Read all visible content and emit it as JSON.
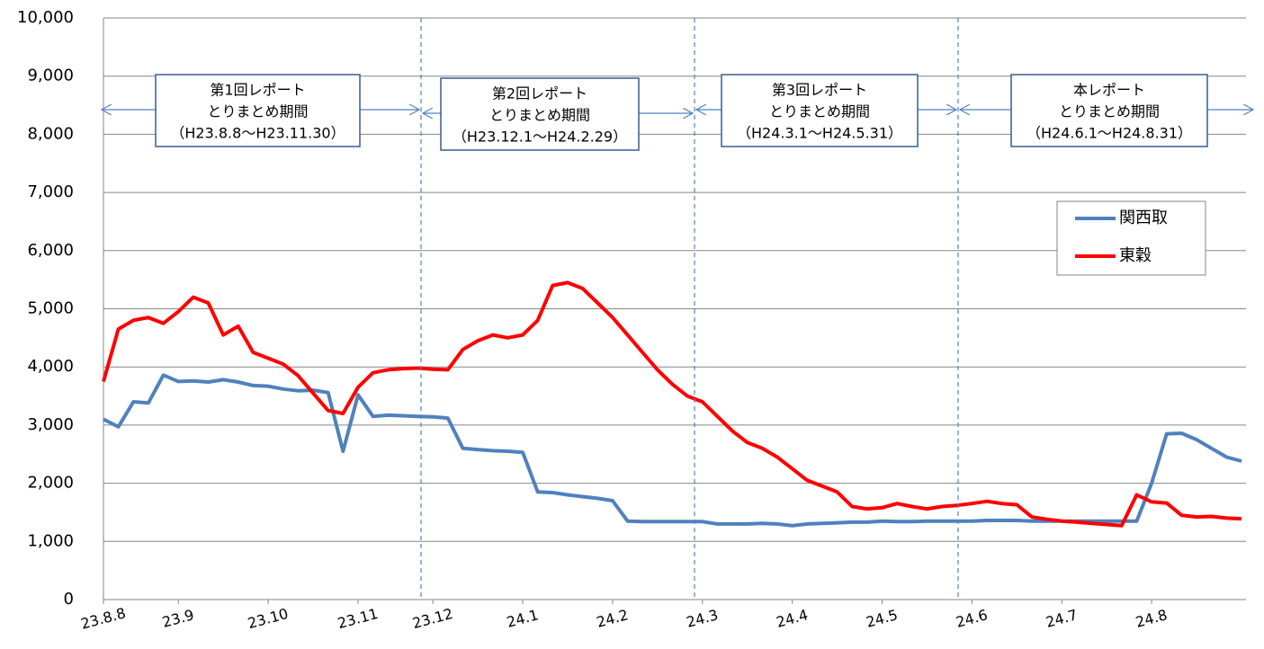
{
  "chart_data": {
    "type": "line",
    "categories": [
      "23.8.8",
      null,
      null,
      null,
      null,
      "23.9",
      null,
      null,
      null,
      null,
      null,
      "23.10",
      null,
      null,
      null,
      null,
      null,
      "23.11",
      null,
      null,
      null,
      null,
      "23.12",
      null,
      null,
      null,
      null,
      null,
      "24.1",
      null,
      null,
      null,
      null,
      null,
      "24.2",
      null,
      null,
      null,
      null,
      null,
      "24.3",
      null,
      null,
      null,
      null,
      null,
      "24.4",
      null,
      null,
      null,
      null,
      null,
      "24.5",
      null,
      null,
      null,
      null,
      null,
      "24.6",
      null,
      null,
      null,
      null,
      null,
      "24.7",
      null,
      null,
      null,
      null,
      null,
      "24.8",
      null,
      null,
      null,
      null,
      null,
      null
    ],
    "series": [
      {
        "name": "関西取",
        "color": "#4f81bd",
        "values": [
          3100,
          2970,
          3400,
          3380,
          3860,
          3750,
          3760,
          3740,
          3780,
          3740,
          3680,
          3670,
          3620,
          3590,
          3600,
          3560,
          2550,
          3520,
          3150,
          3170,
          3160,
          3150,
          3140,
          3120,
          2600,
          2580,
          2560,
          2550,
          2530,
          1850,
          1840,
          1800,
          1770,
          1740,
          1700,
          1350,
          1340,
          1340,
          1340,
          1340,
          1340,
          1300,
          1300,
          1300,
          1310,
          1300,
          1270,
          1300,
          1310,
          1320,
          1330,
          1330,
          1350,
          1340,
          1340,
          1350,
          1350,
          1350,
          1350,
          1360,
          1360,
          1360,
          1350,
          1350,
          1350,
          1350,
          1350,
          1350,
          1350,
          1350,
          2000,
          2850,
          2860,
          2750,
          2600,
          2450,
          2380
        ]
      },
      {
        "name": "東穀",
        "color": "#ff0000",
        "values": [
          3750,
          4650,
          4800,
          4850,
          4750,
          4950,
          5200,
          5100,
          4550,
          4700,
          4250,
          4150,
          4050,
          3850,
          3550,
          3250,
          3200,
          3650,
          3900,
          3950,
          3970,
          3980,
          3960,
          3950,
          4300,
          4450,
          4550,
          4500,
          4550,
          4800,
          5400,
          5450,
          5350,
          5100,
          4850,
          4550,
          4250,
          3950,
          3700,
          3500,
          3400,
          3150,
          2900,
          2700,
          2600,
          2450,
          2250,
          2050,
          1950,
          1850,
          1600,
          1560,
          1580,
          1650,
          1600,
          1560,
          1600,
          1620,
          1650,
          1690,
          1650,
          1630,
          1420,
          1380,
          1350,
          1330,
          1310,
          1290,
          1270,
          1800,
          1680,
          1660,
          1450,
          1420,
          1430,
          1400,
          1390
        ]
      }
    ],
    "ylim": [
      0,
      10000
    ],
    "yticks": [
      0,
      {
        "value": 1000,
        "label": "1,000"
      },
      {
        "value": 2000,
        "label": "2,000"
      },
      {
        "value": 3000,
        "label": "3,000"
      },
      {
        "value": 4000,
        "label": "4,000"
      },
      {
        "value": 5000,
        "label": "5,000"
      },
      {
        "value": 6000,
        "label": "6,000"
      },
      {
        "value": 7000,
        "label": "7,000"
      },
      {
        "value": 8000,
        "label": "8,000"
      },
      {
        "value": 9000,
        "label": "9,000"
      },
      {
        "value": 10000,
        "label": "10,000"
      }
    ],
    "grid": true,
    "legend": "right",
    "annotations": [
      [
        "第1回レポート",
        "とりまとめ期間",
        "（H23.8.8～H23.11.30）"
      ],
      [
        "第2回レポート",
        "とりまとめ期間",
        "（H23.12.1～H24.2.29）"
      ],
      [
        "第3回レポート",
        "とりまとめ期間",
        "（H24.3.1～H24.5.31）"
      ],
      [
        "本レポート",
        "とりまとめ期間",
        "（H24.6.1～H24.8.31）"
      ]
    ]
  }
}
